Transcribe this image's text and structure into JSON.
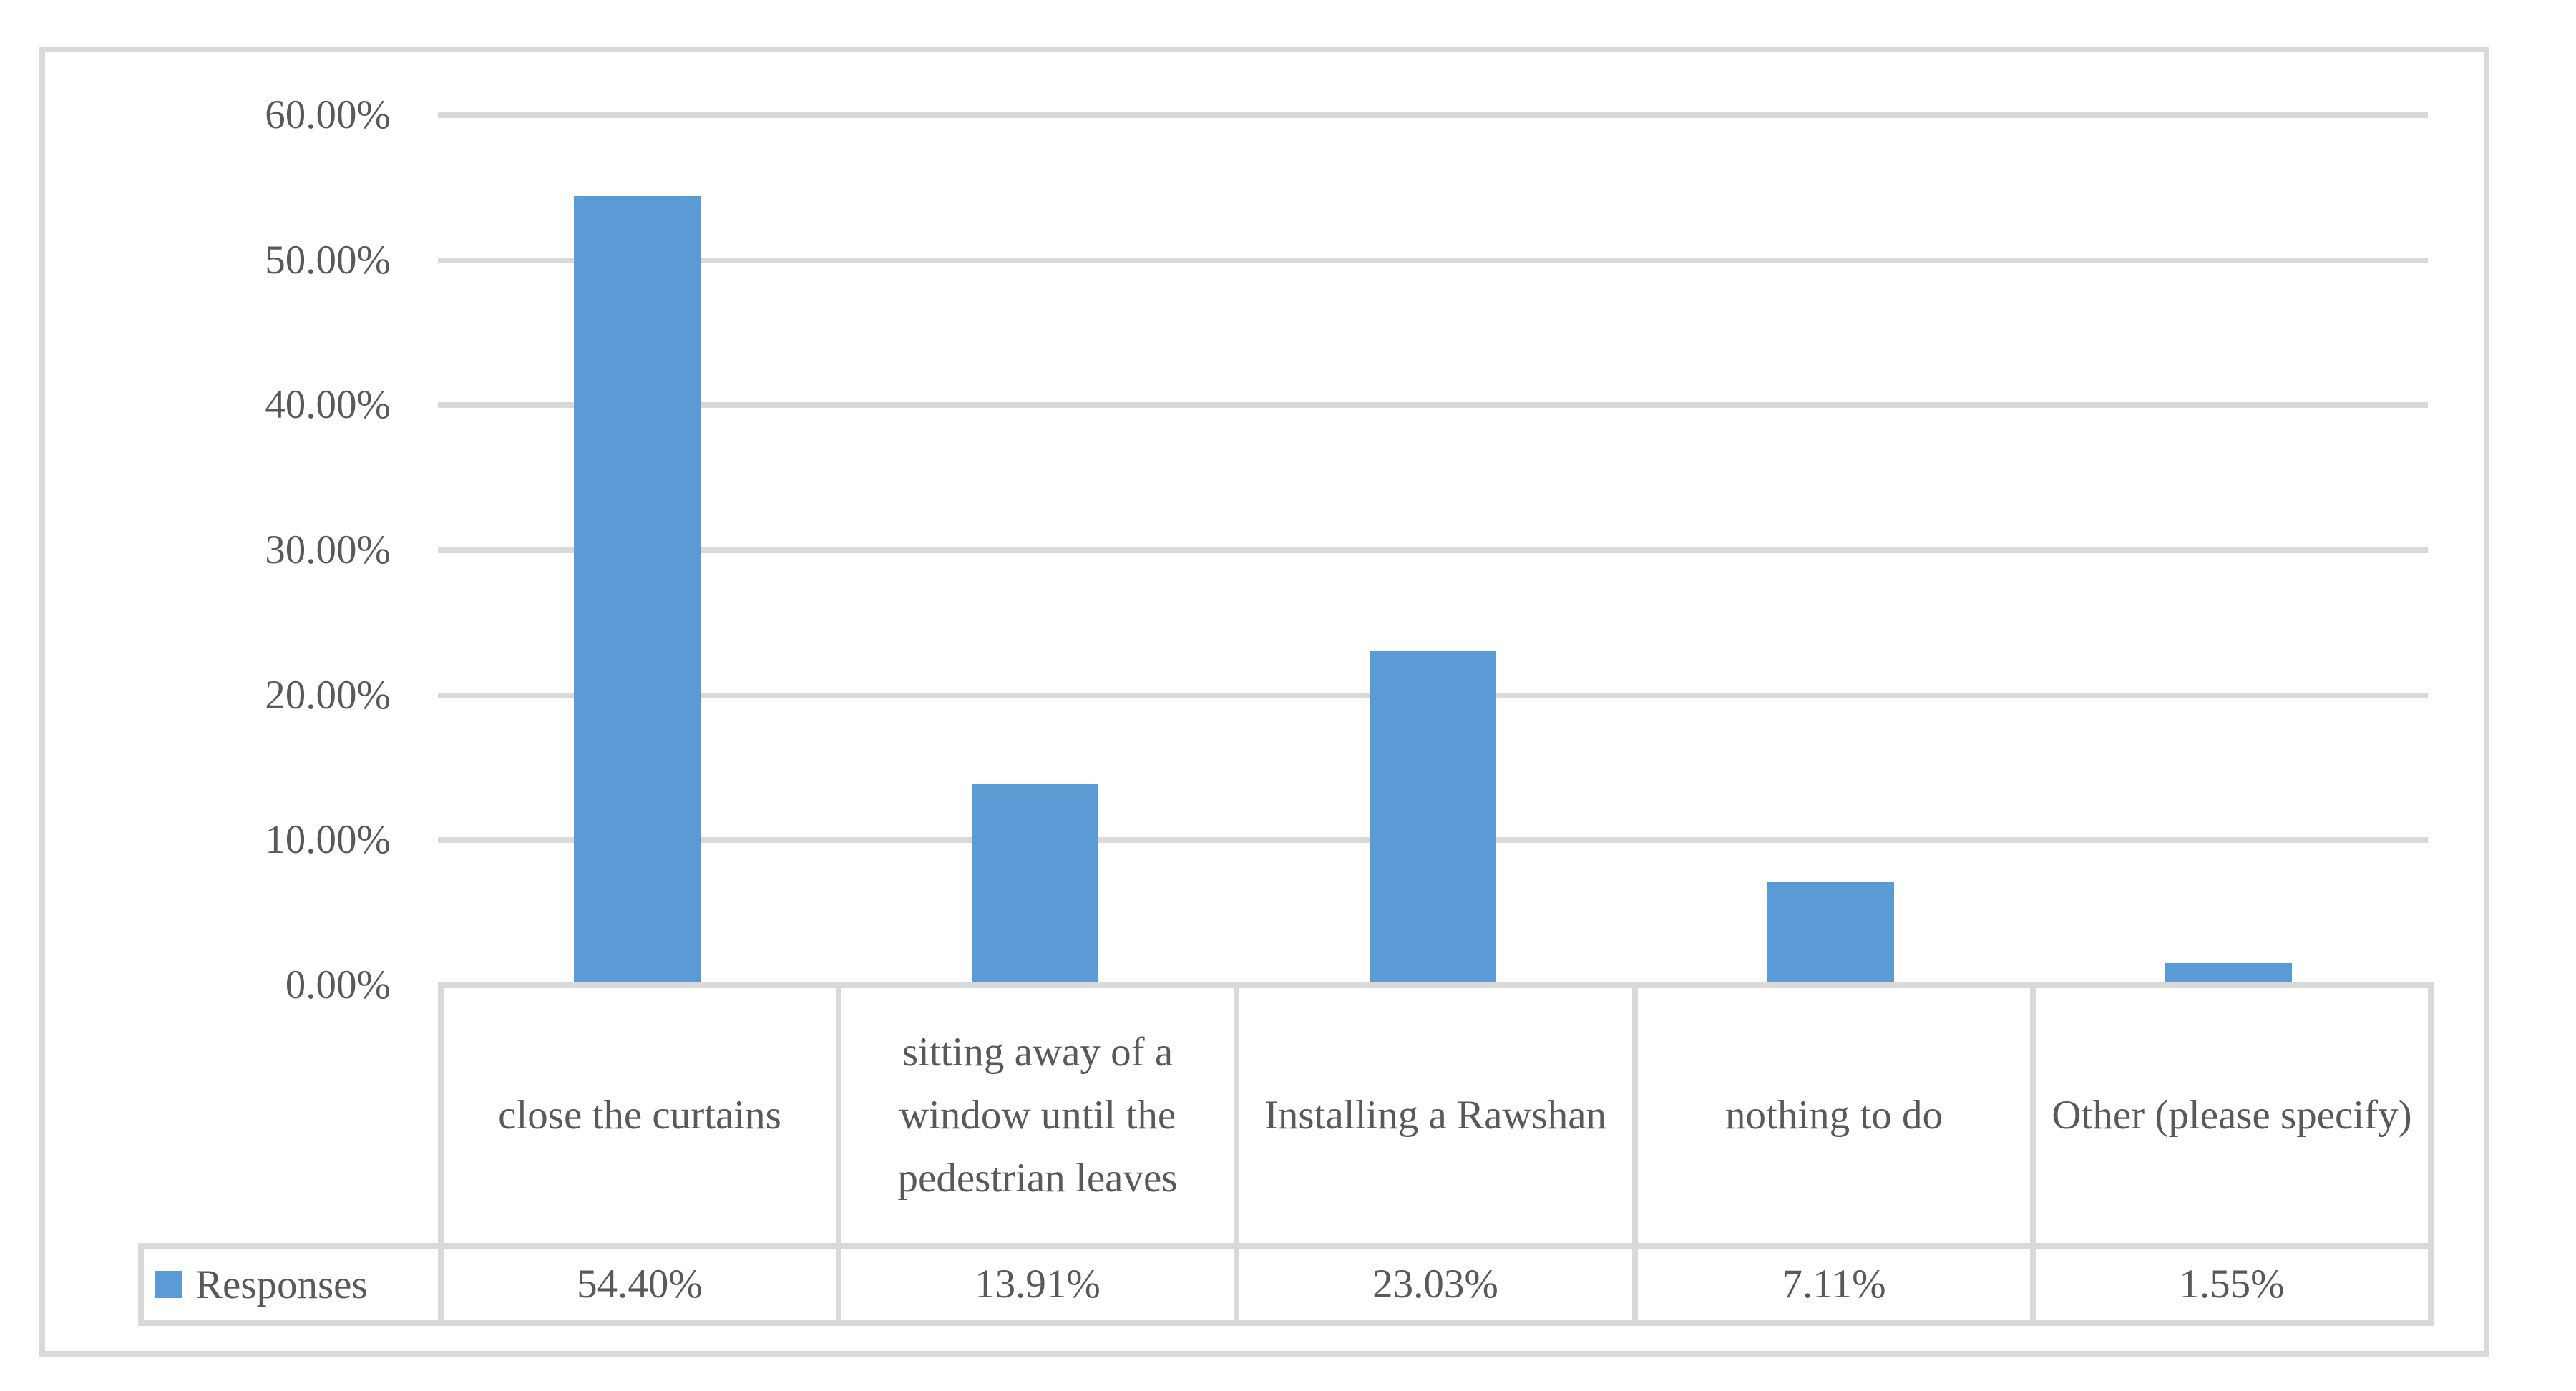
{
  "page": {
    "background_color": "#FFFFFF",
    "frame_border_color": "#D9D9D9"
  },
  "chart_data": {
    "type": "bar",
    "title": "",
    "categories": [
      "close the curtains",
      "sitting away of a window until the pedestrian leaves",
      "Installing a Rawshan",
      "nothing to do",
      "Other (please specify)"
    ],
    "series": [
      {
        "name": "Responses",
        "values": [
          54.4,
          13.91,
          23.03,
          7.11,
          1.55
        ]
      }
    ],
    "value_labels": [
      "54.40%",
      "13.91%",
      "23.03%",
      "7.11%",
      "1.55%"
    ],
    "yticks": [
      {
        "value": 0,
        "label": "0.00%"
      },
      {
        "value": 10,
        "label": "10.00%"
      },
      {
        "value": 20,
        "label": "20.00%"
      },
      {
        "value": 30,
        "label": "30.00%"
      },
      {
        "value": 40,
        "label": "40.00%"
      },
      {
        "value": 50,
        "label": "50.00%"
      },
      {
        "value": 60,
        "label": "60.00%"
      }
    ],
    "ylim": [
      0,
      60
    ],
    "grid": true,
    "gridline_color": "#D9D9D9",
    "bar_color": "#5B9BD5",
    "text_color": "#595959",
    "legend_position": "data-table-left",
    "data_table": true
  }
}
